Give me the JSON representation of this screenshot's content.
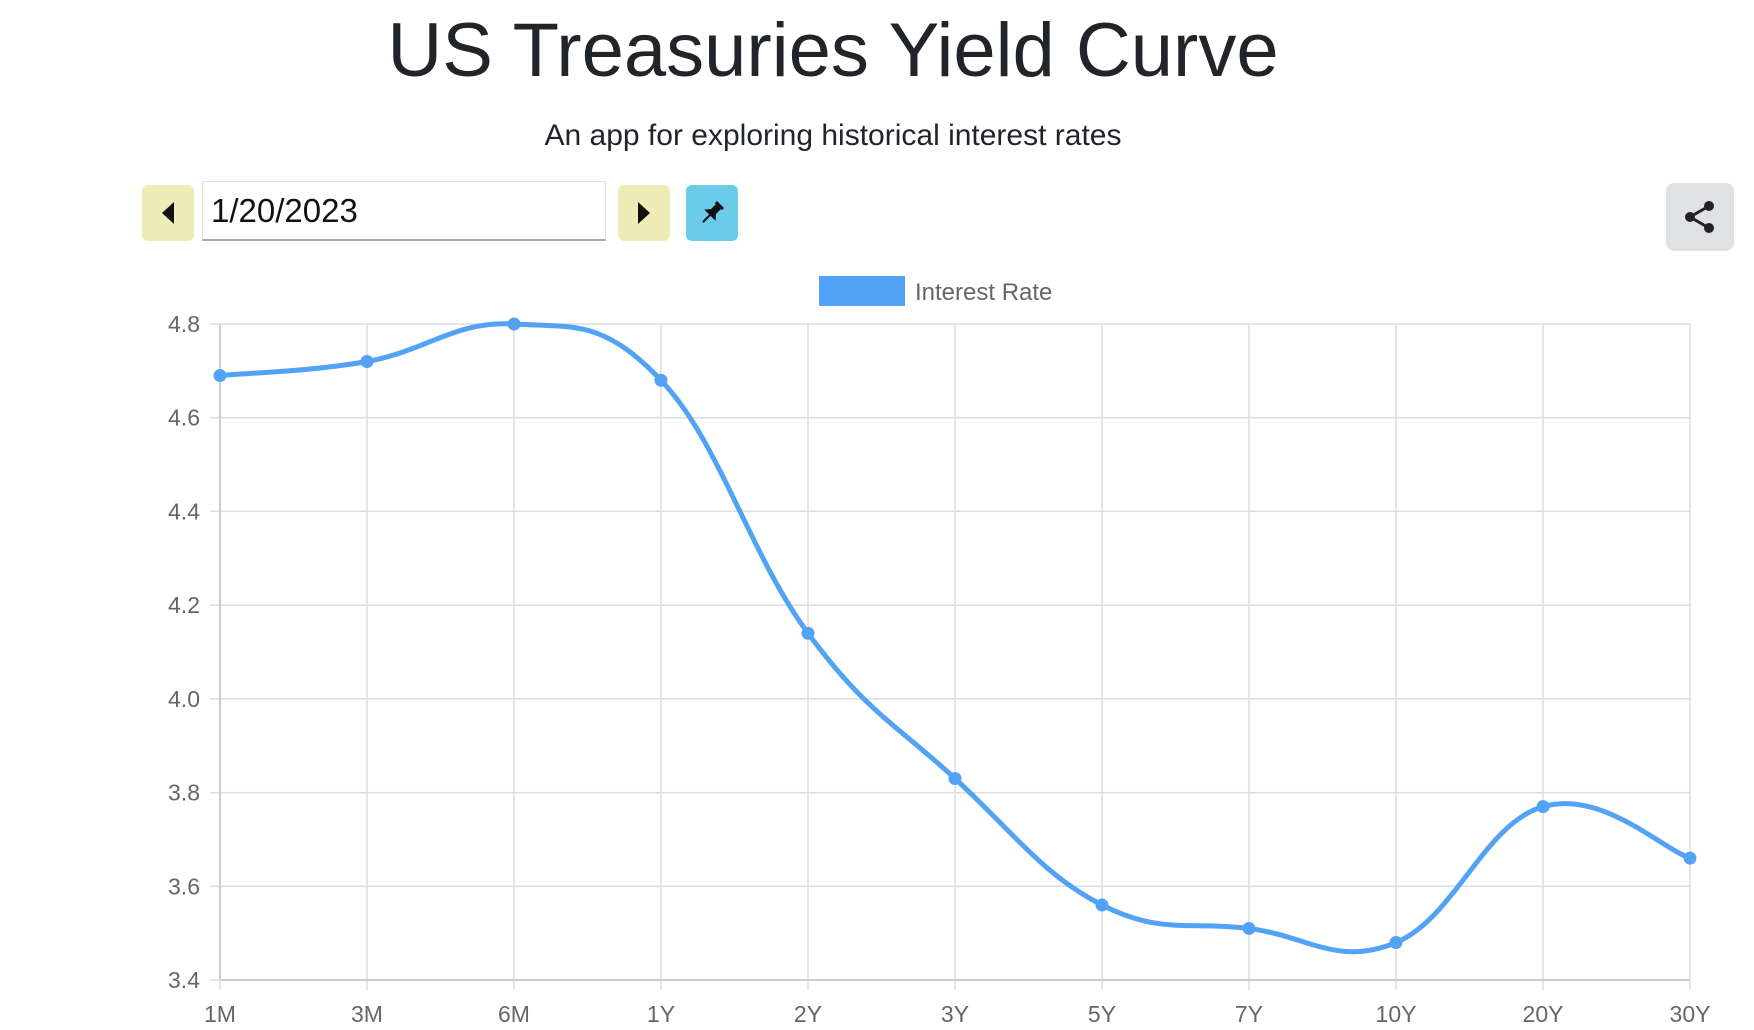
{
  "header": {
    "title": "US Treasuries Yield Curve",
    "subtitle": "An app for exploring historical interest rates"
  },
  "controls": {
    "date_value": "1/20/2023",
    "prev_icon": "caret-left-icon",
    "next_icon": "caret-right-icon",
    "pin_icon": "pin-icon",
    "share_icon": "share-icon"
  },
  "colors": {
    "line": "#52a2f5",
    "nav_button": "#eeecb8",
    "pin_button": "#6ccbe9",
    "share_button": "#dfe1e4",
    "grid": "#dddddd",
    "tick_text": "#666666"
  },
  "chart_data": {
    "type": "line",
    "title": "",
    "xlabel": "",
    "ylabel": "",
    "categories": [
      "1M",
      "3M",
      "6M",
      "1Y",
      "2Y",
      "3Y",
      "5Y",
      "7Y",
      "10Y",
      "20Y",
      "30Y"
    ],
    "series": [
      {
        "name": "Interest Rate",
        "values": [
          4.69,
          4.72,
          4.8,
          4.68,
          4.14,
          3.83,
          3.56,
          3.51,
          3.48,
          3.77,
          3.66
        ]
      }
    ],
    "ylim": [
      3.4,
      4.8
    ],
    "yticks": [
      "4.8",
      "4.6",
      "4.4",
      "4.2",
      "4.0",
      "3.8",
      "3.6",
      "3.4"
    ],
    "grid": true,
    "legend_position": "top-center"
  }
}
